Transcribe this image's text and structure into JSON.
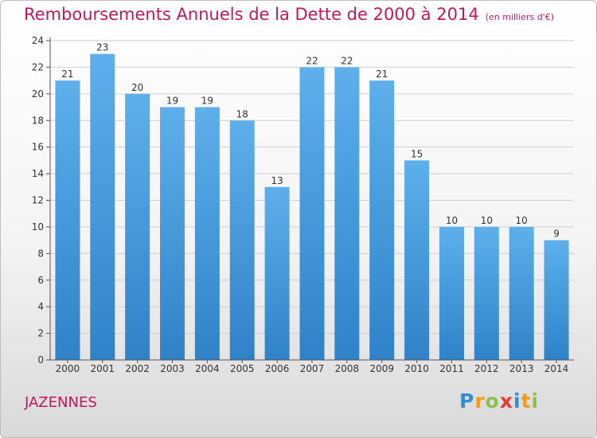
{
  "title": "Remboursements Annuels de la Dette de 2000 à 2014",
  "title_unit": "(en milliers d'€)",
  "town": "JAZENNES",
  "logo": {
    "text": "Proxiti",
    "letters": [
      "P",
      "r",
      "o",
      "x",
      "i",
      "t",
      "i"
    ],
    "colors": [
      "#2e8fd8",
      "#f39c12",
      "#8bc34a",
      "#e53935",
      "#2e8fd8",
      "#f39c12",
      "#8bc34a"
    ]
  },
  "colors": {
    "title": "#c2185b",
    "bar_light": "#5db0eb",
    "bar_dark": "#2f82c8",
    "grid": "#d0d0d0",
    "axis": "#555555"
  },
  "chart_data": {
    "type": "bar",
    "title": "Remboursements Annuels de la Dette de 2000 à 2014",
    "xlabel": "",
    "ylabel": "",
    "ylim": [
      0,
      24
    ],
    "yticks": [
      0,
      2,
      4,
      6,
      8,
      10,
      12,
      14,
      16,
      18,
      20,
      22,
      24
    ],
    "grid": true,
    "categories": [
      "2000",
      "2001",
      "2002",
      "2003",
      "2004",
      "2005",
      "2006",
      "2007",
      "2008",
      "2009",
      "2010",
      "2011",
      "2012",
      "2013",
      "2014"
    ],
    "values": [
      21,
      23,
      20,
      19,
      19,
      18,
      13,
      22,
      22,
      21,
      15,
      10,
      10,
      10,
      9
    ]
  }
}
